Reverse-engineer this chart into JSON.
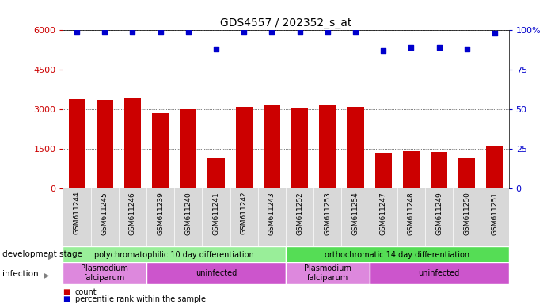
{
  "title": "GDS4557 / 202352_s_at",
  "samples": [
    "GSM611244",
    "GSM611245",
    "GSM611246",
    "GSM611239",
    "GSM611240",
    "GSM611241",
    "GSM611242",
    "GSM611243",
    "GSM611252",
    "GSM611253",
    "GSM611254",
    "GSM611247",
    "GSM611248",
    "GSM611249",
    "GSM611250",
    "GSM611251"
  ],
  "counts": [
    3400,
    3370,
    3420,
    2850,
    3000,
    1180,
    3100,
    3150,
    3050,
    3150,
    3100,
    1350,
    1400,
    1380,
    1180,
    1600
  ],
  "percentiles": [
    99,
    99,
    99,
    99,
    99,
    88,
    99,
    99,
    99,
    99,
    99,
    87,
    89,
    89,
    88,
    98
  ],
  "bar_color": "#cc0000",
  "dot_color": "#0000cc",
  "ylim_left": [
    0,
    6000
  ],
  "ylim_right": [
    0,
    100
  ],
  "yticks_left": [
    0,
    1500,
    3000,
    4500,
    6000
  ],
  "yticks_right": [
    0,
    25,
    50,
    75,
    100
  ],
  "dev_stage_groups": [
    {
      "label": "polychromatophilic 10 day differentiation",
      "start": 0,
      "end": 8,
      "color": "#99ee99"
    },
    {
      "label": "orthochromatic 14 day differentiation",
      "start": 8,
      "end": 16,
      "color": "#55dd55"
    }
  ],
  "infection_groups": [
    {
      "label": "Plasmodium\nfalciparum",
      "start": 0,
      "end": 3,
      "color": "#dd88dd"
    },
    {
      "label": "uninfected",
      "start": 3,
      "end": 8,
      "color": "#cc55cc"
    },
    {
      "label": "Plasmodium\nfalciparum",
      "start": 8,
      "end": 11,
      "color": "#dd88dd"
    },
    {
      "label": "uninfected",
      "start": 11,
      "end": 16,
      "color": "#cc55cc"
    }
  ],
  "dev_stage_label": "development stage",
  "infection_label": "infection",
  "legend_count_label": "count",
  "legend_percentile_label": "percentile rank within the sample",
  "background_color": "#ffffff",
  "plot_bg_color": "#ffffff"
}
